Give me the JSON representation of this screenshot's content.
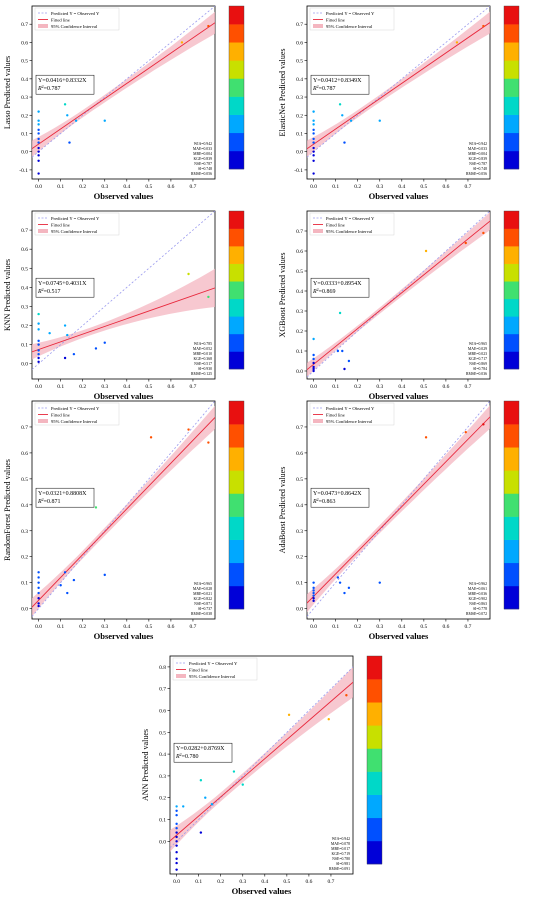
{
  "colors": {
    "accent_red": "#e8283c",
    "band_fill": "#f4b6c0",
    "identity": "#9a9aee",
    "colorbar": [
      "#0000d8",
      "#0050ff",
      "#00a8ff",
      "#00d8c8",
      "#40e070",
      "#c8e000",
      "#ffb000",
      "#ff5000",
      "#e81010"
    ]
  },
  "xlabel": "Observed values",
  "legend_labels": [
    "Predicted Y = Observed Y",
    "Fitted line",
    "95% Confidence Interval"
  ],
  "chart_data": [
    {
      "type": "scatter",
      "ylabel": "Lasso Predicted values",
      "equation": "Y=0.0416+0.8332X",
      "r2_text": "=0.787",
      "xlim": [
        -0.03,
        0.8
      ],
      "ylim": [
        -0.15,
        0.8
      ],
      "xticks": [
        "0.0",
        "0.1",
        "0.2",
        "0.3",
        "0.4",
        "0.5",
        "0.6",
        "0.7"
      ],
      "yticks": [
        "-0.1",
        "0.0",
        "0.1",
        "0.2",
        "0.3",
        "0.4",
        "0.5",
        "0.6",
        "0.7"
      ],
      "fit": {
        "intercept": 0.0416,
        "slope": 0.8332,
        "ci": [
          0.045,
          0.02,
          0.06
        ]
      },
      "stats": [
        "WIA=0.942",
        "MAE=0.033",
        "MBE=0.004",
        "KGE=0.839",
        "NSE=0.787",
        "SI=0.748",
        "RMSE=0.056"
      ],
      "points": [
        [
          0.0,
          0.22
        ],
        [
          0.0,
          0.17
        ],
        [
          0.0,
          0.15
        ],
        [
          0.0,
          0.12
        ],
        [
          0.0,
          0.1
        ],
        [
          0.0,
          0.07
        ],
        [
          0.0,
          0.05
        ],
        [
          0.0,
          0.02
        ],
        [
          0.0,
          0.0
        ],
        [
          0.0,
          -0.02
        ],
        [
          0.0,
          -0.05
        ],
        [
          0.0,
          -0.12
        ],
        [
          0.12,
          0.26
        ],
        [
          0.13,
          0.2
        ],
        [
          0.14,
          0.05
        ],
        [
          0.17,
          0.17
        ],
        [
          0.3,
          0.17
        ],
        [
          0.65,
          0.6
        ],
        [
          0.77,
          0.69
        ]
      ]
    },
    {
      "type": "scatter",
      "ylabel": "ElasticNet Predicted values",
      "equation": "Y=0.0412+0.8349X",
      "r2_text": "=0.787",
      "xlim": [
        -0.03,
        0.8
      ],
      "ylim": [
        -0.15,
        0.8
      ],
      "xticks": [
        "0.0",
        "0.1",
        "0.2",
        "0.3",
        "0.4",
        "0.5",
        "0.6",
        "0.7"
      ],
      "yticks": [
        "-0.1",
        "0.0",
        "0.1",
        "0.2",
        "0.3",
        "0.4",
        "0.5",
        "0.6",
        "0.7"
      ],
      "fit": {
        "intercept": 0.0412,
        "slope": 0.8349,
        "ci": [
          0.045,
          0.02,
          0.06
        ]
      },
      "stats": [
        "WIA=0.942",
        "MAE=0.033",
        "MBE=0.004",
        "KGE=0.839",
        "NSE=0.787",
        "SI=0.748",
        "RMSE=0.056"
      ],
      "points": [
        [
          0.0,
          0.22
        ],
        [
          0.0,
          0.17
        ],
        [
          0.0,
          0.15
        ],
        [
          0.0,
          0.12
        ],
        [
          0.0,
          0.1
        ],
        [
          0.0,
          0.07
        ],
        [
          0.0,
          0.05
        ],
        [
          0.0,
          0.02
        ],
        [
          0.0,
          0.0
        ],
        [
          0.0,
          -0.02
        ],
        [
          0.0,
          -0.05
        ],
        [
          0.0,
          -0.12
        ],
        [
          0.12,
          0.26
        ],
        [
          0.13,
          0.2
        ],
        [
          0.14,
          0.05
        ],
        [
          0.17,
          0.17
        ],
        [
          0.3,
          0.17
        ],
        [
          0.65,
          0.6
        ],
        [
          0.77,
          0.69
        ]
      ]
    },
    {
      "type": "scatter",
      "ylabel": "KNN Predicted values",
      "equation": "Y=0.0745+0.4031X",
      "r2_text": "=0.517",
      "xlim": [
        -0.03,
        0.8
      ],
      "ylim": [
        -0.08,
        0.8
      ],
      "xticks": [
        "0.0",
        "0.1",
        "0.2",
        "0.3",
        "0.4",
        "0.5",
        "0.6",
        "0.7"
      ],
      "yticks": [
        "0.0",
        "0.1",
        "0.2",
        "0.3",
        "0.4",
        "0.5",
        "0.6",
        "0.7"
      ],
      "fit": {
        "intercept": 0.0745,
        "slope": 0.4031,
        "ci": [
          0.04,
          0.02,
          0.1
        ]
      },
      "stats": [
        "WIA=0.785",
        "MAE=0.052",
        "MBE=0.010",
        "KGE=0.368",
        "NSE=0.517",
        "SI=0.930",
        "RMSE=0.125"
      ],
      "points": [
        [
          0.0,
          0.26
        ],
        [
          0.0,
          0.21
        ],
        [
          0.0,
          0.18
        ],
        [
          0.0,
          0.12
        ],
        [
          0.0,
          0.1
        ],
        [
          0.0,
          0.07
        ],
        [
          0.0,
          0.05
        ],
        [
          0.0,
          0.03
        ],
        [
          0.0,
          0.01
        ],
        [
          0.05,
          0.16
        ],
        [
          0.12,
          0.2
        ],
        [
          0.13,
          0.15
        ],
        [
          0.12,
          0.03
        ],
        [
          0.16,
          0.05
        ],
        [
          0.26,
          0.08
        ],
        [
          0.3,
          0.11
        ],
        [
          0.68,
          0.47
        ],
        [
          0.77,
          0.35
        ]
      ]
    },
    {
      "type": "scatter",
      "ylabel": "XGBoost Predicted values",
      "equation": "Y=0.0333+0.8954X",
      "r2_text": "=0.869",
      "xlim": [
        -0.03,
        0.8
      ],
      "ylim": [
        -0.04,
        0.8
      ],
      "xticks": [
        "0.0",
        "0.1",
        "0.2",
        "0.3",
        "0.4",
        "0.5",
        "0.6",
        "0.7"
      ],
      "yticks": [
        "0.0",
        "0.1",
        "0.2",
        "0.3",
        "0.4",
        "0.5",
        "0.6",
        "0.7"
      ],
      "fit": {
        "intercept": 0.0333,
        "slope": 0.8954,
        "ci": [
          0.035,
          0.015,
          0.045
        ]
      },
      "stats": [
        "WIA=0.965",
        "MAE=0.029",
        "MBE=0.023",
        "KGE=0.717",
        "NSE=0.869",
        "SI=0.784",
        "RMSE=0.036"
      ],
      "points": [
        [
          0.0,
          0.16
        ],
        [
          0.0,
          0.08
        ],
        [
          0.0,
          0.06
        ],
        [
          0.0,
          0.04
        ],
        [
          0.0,
          0.02
        ],
        [
          0.0,
          0.01
        ],
        [
          0.0,
          0.0
        ],
        [
          0.12,
          0.29
        ],
        [
          0.11,
          0.1
        ],
        [
          0.13,
          0.1
        ],
        [
          0.14,
          0.01
        ],
        [
          0.16,
          0.05
        ],
        [
          0.51,
          0.6
        ],
        [
          0.69,
          0.64
        ],
        [
          0.77,
          0.69
        ]
      ]
    },
    {
      "type": "scatter",
      "ylabel": "RandomForest Predicted values",
      "equation": "Y=0.0321+0.8808X",
      "r2_text": "=0.871",
      "xlim": [
        -0.03,
        0.8
      ],
      "ylim": [
        -0.04,
        0.8
      ],
      "xticks": [
        "0.0",
        "0.1",
        "0.2",
        "0.3",
        "0.4",
        "0.5",
        "0.6",
        "0.7"
      ],
      "yticks": [
        "0.0",
        "0.1",
        "0.2",
        "0.3",
        "0.4",
        "0.5",
        "0.6",
        "0.7"
      ],
      "fit": {
        "intercept": 0.0321,
        "slope": 0.8808,
        "ci": [
          0.035,
          0.015,
          0.045
        ]
      },
      "stats": [
        "WIA=0.965",
        "MAE=0.028",
        "MBE=0.021",
        "KGE=0.822",
        "NSE=0.871",
        "SI=0.737",
        "RMSE=0.038"
      ],
      "points": [
        [
          0.0,
          0.14
        ],
        [
          0.0,
          0.12
        ],
        [
          0.0,
          0.1
        ],
        [
          0.0,
          0.08
        ],
        [
          0.0,
          0.06
        ],
        [
          0.0,
          0.04
        ],
        [
          0.0,
          0.02
        ],
        [
          0.0,
          0.01
        ],
        [
          0.1,
          0.09
        ],
        [
          0.12,
          0.14
        ],
        [
          0.13,
          0.06
        ],
        [
          0.16,
          0.11
        ],
        [
          0.26,
          0.39
        ],
        [
          0.3,
          0.13
        ],
        [
          0.51,
          0.66
        ],
        [
          0.68,
          0.69
        ],
        [
          0.77,
          0.64
        ]
      ]
    },
    {
      "type": "scatter",
      "ylabel": "AdaBoost Predicted values",
      "equation": "Y=0.0473+0.8642X",
      "r2_text": "=0.863",
      "xlim": [
        -0.03,
        0.8
      ],
      "ylim": [
        -0.04,
        0.8
      ],
      "xticks": [
        "0.0",
        "0.1",
        "0.2",
        "0.3",
        "0.4",
        "0.5",
        "0.6",
        "0.7"
      ],
      "yticks": [
        "0.0",
        "0.1",
        "0.2",
        "0.3",
        "0.4",
        "0.5",
        "0.6",
        "0.7"
      ],
      "fit": {
        "intercept": 0.0473,
        "slope": 0.8642,
        "ci": [
          0.035,
          0.015,
          0.045
        ]
      },
      "stats": [
        "WIA=0.962",
        "MAE=0.061",
        "MBE=0.036",
        "KGE=0.902",
        "NSE=0.863",
        "SI=0.778",
        "RMSE=0.072"
      ],
      "points": [
        [
          0.0,
          0.1
        ],
        [
          0.0,
          0.08
        ],
        [
          0.0,
          0.07
        ],
        [
          0.0,
          0.06
        ],
        [
          0.0,
          0.05
        ],
        [
          0.0,
          0.04
        ],
        [
          0.0,
          0.03
        ],
        [
          0.11,
          0.12
        ],
        [
          0.12,
          0.1
        ],
        [
          0.14,
          0.06
        ],
        [
          0.16,
          0.08
        ],
        [
          0.3,
          0.1
        ],
        [
          0.51,
          0.66
        ],
        [
          0.69,
          0.68
        ],
        [
          0.77,
          0.71
        ]
      ]
    },
    {
      "type": "scatter",
      "ylabel": "ANN Predicted values",
      "equation": "Y=0.0282+0.8769X",
      "r2_text": "=0.780",
      "xlim": [
        -0.03,
        0.8
      ],
      "ylim": [
        -0.15,
        0.85
      ],
      "xticks": [
        "0.0",
        "0.1",
        "0.2",
        "0.3",
        "0.4",
        "0.5",
        "0.6",
        "0.7"
      ],
      "yticks": [
        "0.0",
        "0.1",
        "0.2",
        "0.3",
        "0.4",
        "0.5",
        "0.6",
        "0.7",
        "0.8"
      ],
      "fit": {
        "intercept": 0.0282,
        "slope": 0.8769,
        "ci": [
          0.05,
          0.02,
          0.07
        ]
      },
      "stats": [
        "WIA=0.942",
        "MAE=0.078",
        "MBE=0.017",
        "KGE=0.719",
        "NSE=0.780",
        "SI=0.981",
        "RMSE=0.091"
      ],
      "points": [
        [
          0.0,
          0.16
        ],
        [
          0.0,
          0.14
        ],
        [
          0.0,
          0.12
        ],
        [
          0.0,
          0.08
        ],
        [
          0.0,
          0.06
        ],
        [
          0.0,
          0.04
        ],
        [
          0.0,
          0.02
        ],
        [
          0.0,
          0.0
        ],
        [
          0.0,
          -0.02
        ],
        [
          0.0,
          -0.05
        ],
        [
          0.0,
          -0.08
        ],
        [
          0.0,
          -0.1
        ],
        [
          0.0,
          -0.13
        ],
        [
          0.03,
          0.16
        ],
        [
          0.11,
          0.28
        ],
        [
          0.11,
          0.04
        ],
        [
          0.13,
          0.2
        ],
        [
          0.16,
          0.17
        ],
        [
          0.26,
          0.32
        ],
        [
          0.3,
          0.26
        ],
        [
          0.51,
          0.58
        ],
        [
          0.69,
          0.56
        ],
        [
          0.77,
          0.67
        ]
      ]
    }
  ]
}
